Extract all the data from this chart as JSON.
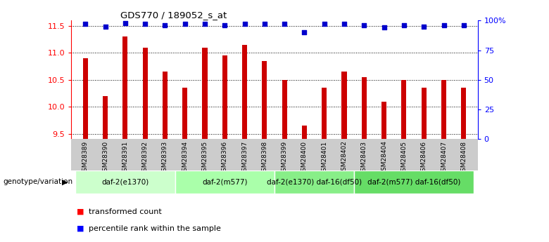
{
  "title": "GDS770 / 189052_s_at",
  "categories": [
    "GSM28389",
    "GSM28390",
    "GSM28391",
    "GSM28392",
    "GSM28393",
    "GSM28394",
    "GSM28395",
    "GSM28396",
    "GSM28397",
    "GSM28398",
    "GSM28399",
    "GSM28400",
    "GSM28401",
    "GSM28402",
    "GSM28403",
    "GSM28404",
    "GSM28405",
    "GSM28406",
    "GSM28407",
    "GSM28408"
  ],
  "bar_values": [
    10.9,
    10.2,
    11.3,
    11.1,
    10.65,
    10.35,
    11.1,
    10.95,
    11.15,
    10.85,
    10.5,
    9.65,
    10.35,
    10.65,
    10.55,
    10.1,
    10.5,
    10.35,
    10.5,
    10.35
  ],
  "percentile_values": [
    97,
    95,
    98,
    97,
    96,
    97,
    97,
    96,
    97,
    97,
    97,
    90,
    97,
    97,
    96,
    94,
    96,
    95,
    96,
    96
  ],
  "bar_color": "#cc0000",
  "percentile_color": "#0000cc",
  "ylim_left": [
    9.4,
    11.6
  ],
  "ylim_right": [
    0,
    100
  ],
  "yticks_left": [
    9.5,
    10.0,
    10.5,
    11.0,
    11.5
  ],
  "yticks_right": [
    0,
    25,
    50,
    75,
    100
  ],
  "ytick_labels_right": [
    "0",
    "25",
    "50",
    "75",
    "100%"
  ],
  "groups": [
    {
      "label": "daf-2(e1370)",
      "start": 0,
      "end": 5
    },
    {
      "label": "daf-2(m577)",
      "start": 5,
      "end": 10
    },
    {
      "label": "daf-2(e1370) daf-16(df50)",
      "start": 10,
      "end": 14
    },
    {
      "label": "daf-2(m577) daf-16(df50)",
      "start": 14,
      "end": 20
    }
  ],
  "group_colors": [
    "#ccffcc",
    "#aaffaa",
    "#88ee88",
    "#66dd66"
  ],
  "group_label_prefix": "genotype/variation",
  "legend_bar_label": "transformed count",
  "legend_dot_label": "percentile rank within the sample",
  "xlabel_row_bg": "#cccccc",
  "bar_bottom": 9.4,
  "bar_width": 0.25
}
